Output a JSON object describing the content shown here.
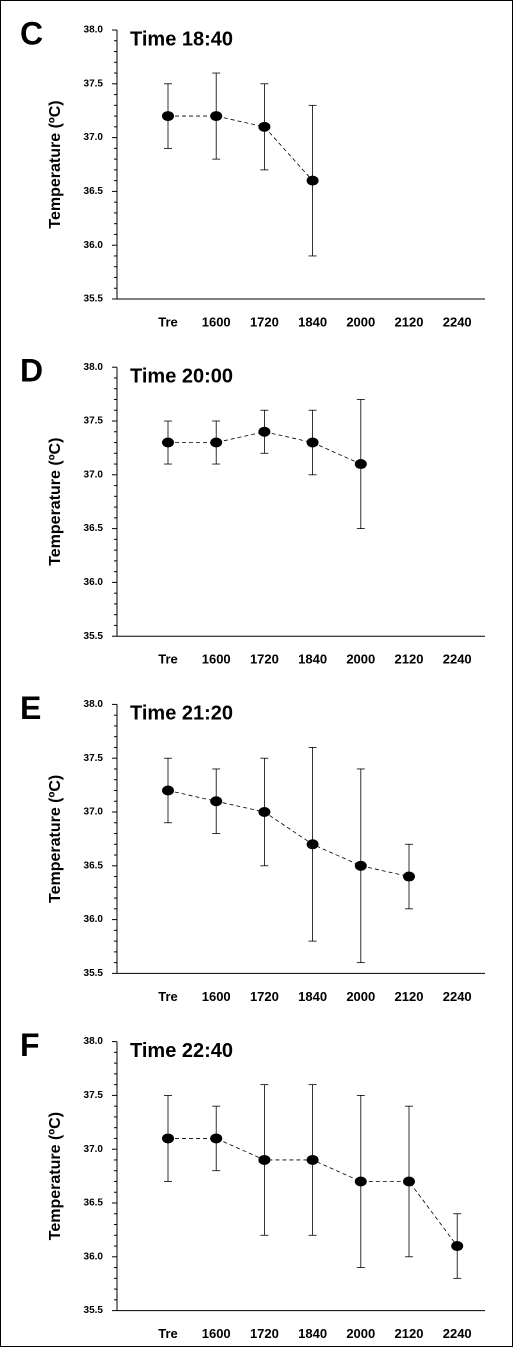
{
  "chart_data": [
    {
      "type": "line",
      "panel": "C",
      "title": "Time 18:40",
      "ylabel": "Temperature (ºC)",
      "categories": [
        "Tre",
        "1600",
        "1720",
        "1840",
        "2000",
        "2120",
        "2240"
      ],
      "values": [
        37.2,
        37.2,
        37.1,
        36.6,
        null,
        null,
        null
      ],
      "errors": [
        0.3,
        0.4,
        0.4,
        0.7,
        null,
        null,
        null
      ],
      "ylim": [
        35.5,
        38.0
      ],
      "yticks": [
        {
          "value": 35.5,
          "label": "35.5"
        },
        {
          "value": 36,
          "label": "36.0"
        },
        {
          "value": 36.5,
          "label": "36.5"
        },
        {
          "value": 37,
          "label": "37.0"
        },
        {
          "value": 37.5,
          "label": "37.5"
        },
        {
          "value": 38,
          "label": "38.0"
        }
      ],
      "yminorticks": [
        35.6,
        35.7,
        35.8,
        35.9,
        36.1,
        36.2,
        36.3,
        36.4,
        36.6,
        36.7,
        36.8,
        36.9,
        37.1,
        37.2,
        37.3,
        37.4,
        37.6,
        37.7,
        37.8,
        37.9
      ],
      "color": "#000000"
    },
    {
      "type": "line",
      "panel": "D",
      "title": "Time 20:00",
      "ylabel": "Temperature (ºC)",
      "categories": [
        "Tre",
        "1600",
        "1720",
        "1840",
        "2000",
        "2120",
        "2240"
      ],
      "values": [
        37.3,
        37.3,
        37.4,
        37.3,
        37.1,
        null,
        null
      ],
      "errors": [
        0.2,
        0.2,
        0.2,
        0.3,
        0.6,
        null,
        null
      ],
      "ylim": [
        35.5,
        38.0
      ],
      "yticks": [
        {
          "value": 35.5,
          "label": "35.5"
        },
        {
          "value": 36,
          "label": "36.0"
        },
        {
          "value": 36.5,
          "label": "36.5"
        },
        {
          "value": 37,
          "label": "37.0"
        },
        {
          "value": 37.5,
          "label": "37.5"
        },
        {
          "value": 38,
          "label": "38.0"
        }
      ],
      "yminorticks": [
        35.6,
        35.7,
        35.8,
        35.9,
        36.1,
        36.2,
        36.3,
        36.4,
        36.6,
        36.7,
        36.8,
        36.9,
        37.1,
        37.2,
        37.3,
        37.4,
        37.6,
        37.7,
        37.8,
        37.9
      ],
      "color": "#000000"
    },
    {
      "type": "line",
      "panel": "E",
      "title": "Time 21:20",
      "ylabel": "Temperature (ºC)",
      "categories": [
        "Tre",
        "1600",
        "1720",
        "1840",
        "2000",
        "2120",
        "2240"
      ],
      "values": [
        37.2,
        37.1,
        37.0,
        36.7,
        36.5,
        36.4,
        null
      ],
      "errors": [
        0.3,
        0.3,
        0.5,
        0.9,
        0.9,
        0.3,
        null
      ],
      "ylim": [
        35.5,
        38.0
      ],
      "yticks": [
        {
          "value": 35.5,
          "label": "35.5"
        },
        {
          "value": 36,
          "label": "36.0"
        },
        {
          "value": 36.5,
          "label": "36.5"
        },
        {
          "value": 37,
          "label": "37.0"
        },
        {
          "value": 37.5,
          "label": "37.5"
        },
        {
          "value": 38,
          "label": "38.0"
        }
      ],
      "yminorticks": [
        35.6,
        35.7,
        35.8,
        35.9,
        36.1,
        36.2,
        36.3,
        36.4,
        36.6,
        36.7,
        36.8,
        36.9,
        37.1,
        37.2,
        37.3,
        37.4,
        37.6,
        37.7,
        37.8,
        37.9
      ],
      "color": "#000000"
    },
    {
      "type": "line",
      "panel": "F",
      "title": "Time 22:40",
      "ylabel": "Temperature (ºC)",
      "categories": [
        "Tre",
        "1600",
        "1720",
        "1840",
        "2000",
        "2120",
        "2240"
      ],
      "values": [
        37.1,
        37.1,
        36.9,
        36.9,
        36.7,
        36.7,
        36.1
      ],
      "errors": [
        0.4,
        0.3,
        0.7,
        0.7,
        0.8,
        0.7,
        0.3
      ],
      "ylim": [
        35.5,
        38.0
      ],
      "yticks": [
        {
          "value": 35.5,
          "label": "35.5"
        },
        {
          "value": 36,
          "label": "36.0"
        },
        {
          "value": 36.5,
          "label": "36.5"
        },
        {
          "value": 37,
          "label": "37.0"
        },
        {
          "value": 37.5,
          "label": "37.5"
        },
        {
          "value": 38,
          "label": "38.0"
        }
      ],
      "yminorticks": [
        35.6,
        35.7,
        35.8,
        35.9,
        36.1,
        36.2,
        36.3,
        36.4,
        36.6,
        36.7,
        36.8,
        36.9,
        37.1,
        37.2,
        37.3,
        37.4,
        37.6,
        37.7,
        37.8,
        37.9
      ],
      "color": "#000000"
    }
  ]
}
